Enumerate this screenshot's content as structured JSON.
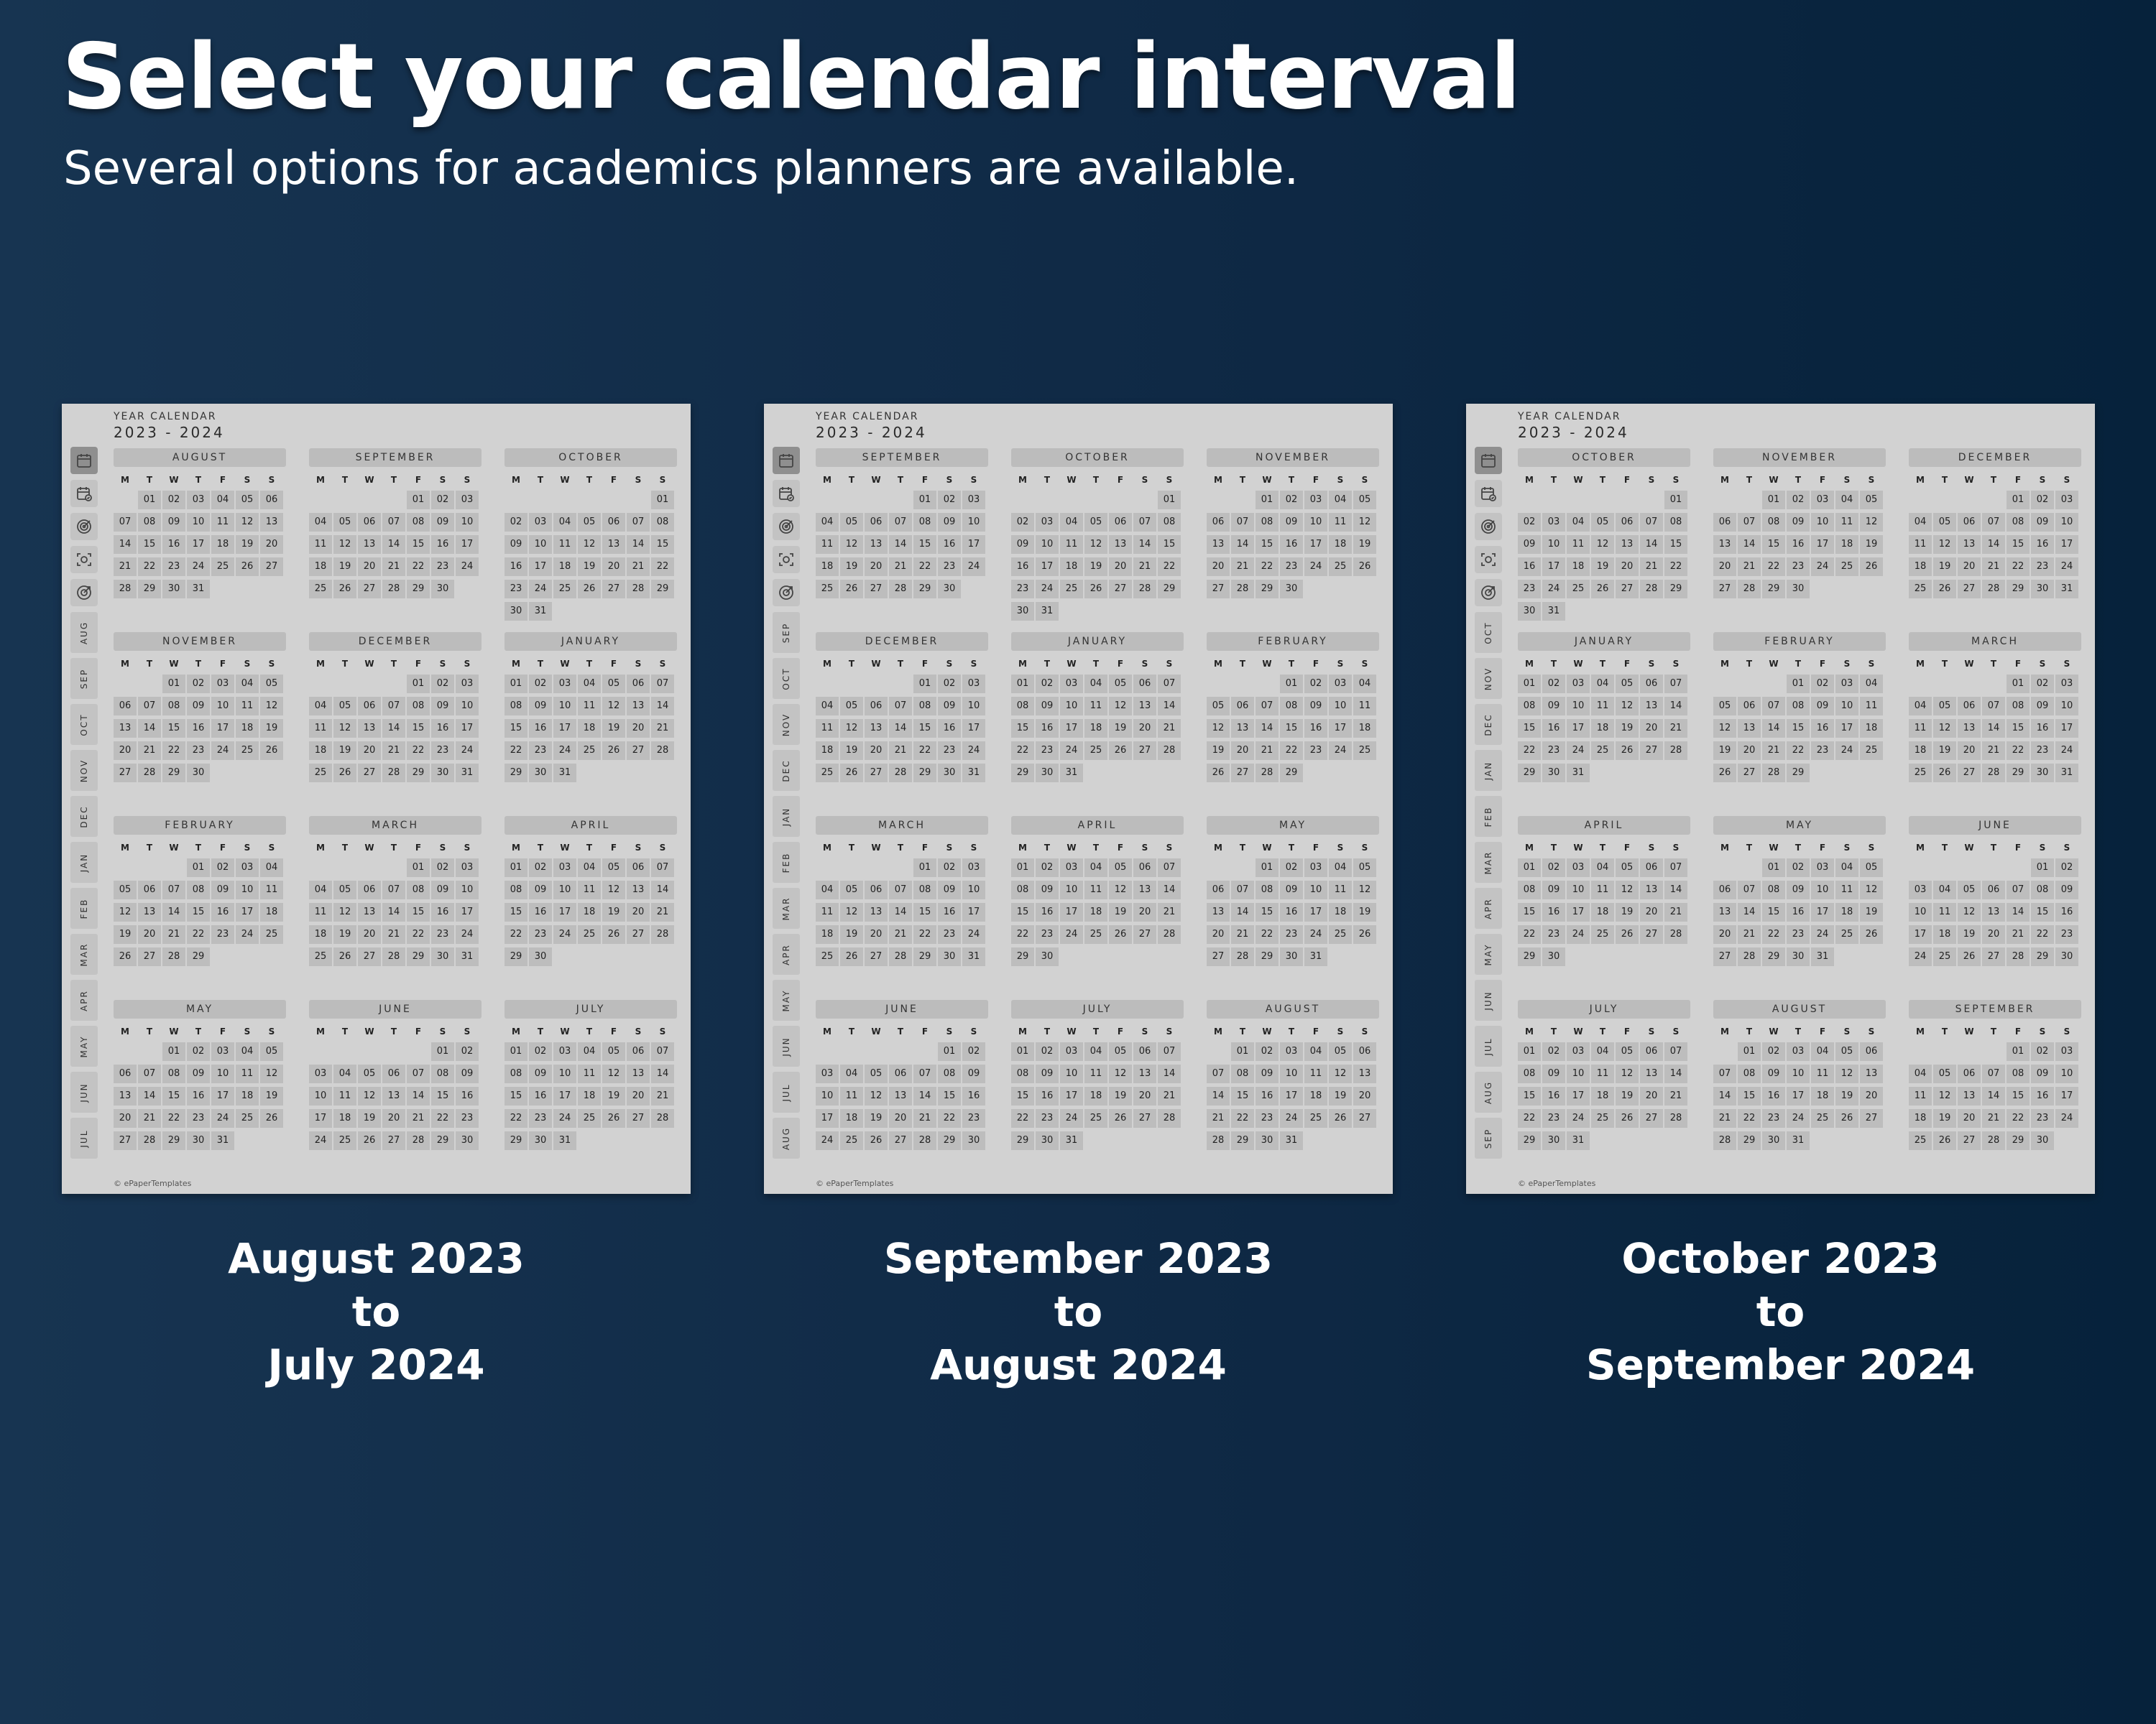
{
  "header": {
    "title": "Select your calendar interval",
    "subtitle": "Several options for academics planners are available."
  },
  "template": {
    "title": "YEAR CALENDAR",
    "years": "2023 - 2024",
    "footer": "© ePaperTemplates",
    "weekdays": [
      "M",
      "T",
      "W",
      "T",
      "F",
      "S",
      "S"
    ]
  },
  "side_icons": [
    "calendar-month-icon",
    "calendar-check-icon",
    "target-icon",
    "focus-icon",
    "goal-icon"
  ],
  "months_def": {
    "JANUARY": {
      "abbr": "JAN",
      "offset": 0,
      "days": 31
    },
    "FEBRUARY": {
      "abbr": "FEB",
      "offset": 3,
      "days": 29
    },
    "MARCH": {
      "abbr": "MAR",
      "offset": 4,
      "days": 31
    },
    "APRIL": {
      "abbr": "APR",
      "offset": 0,
      "days": 30
    },
    "MAY": {
      "abbr": "MAY",
      "offset": 2,
      "days": 31
    },
    "JUNE": {
      "abbr": "JUN",
      "offset": 5,
      "days": 30
    },
    "JULY": {
      "abbr": "JUL",
      "offset": 0,
      "days": 31
    },
    "AUGUST": {
      "abbr": "AUG",
      "offset": 1,
      "days": 31
    },
    "SEPTEMBER": {
      "abbr": "SEP",
      "offset": 4,
      "days": 30
    },
    "OCTOBER": {
      "abbr": "OCT",
      "offset": 6,
      "days": 31
    },
    "NOVEMBER": {
      "abbr": "NOV",
      "offset": 2,
      "days": 30
    },
    "DECEMBER": {
      "abbr": "DEC",
      "offset": 4,
      "days": 31
    }
  },
  "options": [
    {
      "months": [
        "AUGUST",
        "SEPTEMBER",
        "OCTOBER",
        "NOVEMBER",
        "DECEMBER",
        "JANUARY",
        "FEBRUARY",
        "MARCH",
        "APRIL",
        "MAY",
        "JUNE",
        "JULY"
      ],
      "caption": [
        "August 2023",
        "to",
        "July 2024"
      ]
    },
    {
      "months": [
        "SEPTEMBER",
        "OCTOBER",
        "NOVEMBER",
        "DECEMBER",
        "JANUARY",
        "FEBRUARY",
        "MARCH",
        "APRIL",
        "MAY",
        "JUNE",
        "JULY",
        "AUGUST"
      ],
      "caption": [
        "September 2023",
        "to",
        "August 2024"
      ]
    },
    {
      "months": [
        "OCTOBER",
        "NOVEMBER",
        "DECEMBER",
        "JANUARY",
        "FEBRUARY",
        "MARCH",
        "APRIL",
        "MAY",
        "JUNE",
        "JULY",
        "AUGUST",
        "SEPTEMBER"
      ],
      "caption": [
        "October 2023",
        "to",
        "September 2024"
      ]
    }
  ]
}
